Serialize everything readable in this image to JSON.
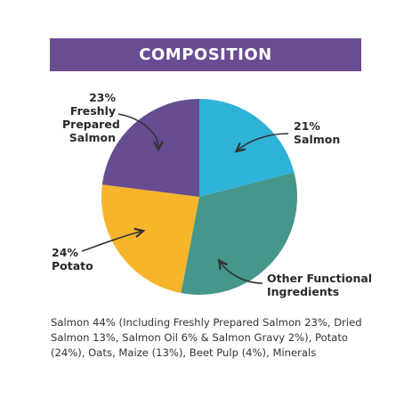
{
  "colors": {
    "banner": "#6a4c93",
    "freshly_prepared_salmon": "#674c91",
    "salmon": "#2fb2d8",
    "other_functional_ingredients": "#44978a",
    "potato": "#f7b52b",
    "arrow": "#333333"
  },
  "banner": {
    "title": "COMPOSITION"
  },
  "chart_data": {
    "type": "pie",
    "title": "COMPOSITION",
    "start_angle_deg": 0,
    "slices": [
      {
        "label_lines": [
          "21%",
          "Salmon"
        ],
        "value": 21,
        "color": "#2fb2d8"
      },
      {
        "label_lines": [
          "Other Functional",
          "Ingredients"
        ],
        "value": 32,
        "color": "#44978a"
      },
      {
        "label_lines": [
          "24%",
          "Potato"
        ],
        "value": 24,
        "color": "#f7b52b"
      },
      {
        "label_lines": [
          "23%",
          "Freshly",
          "Prepared",
          "Salmon"
        ],
        "value": 23,
        "color": "#674c91"
      }
    ]
  },
  "description": "Salmon 44% (Including Freshly Prepared Salmon 23%, Dried Salmon 13%, Salmon Oil 6% & Salmon Gravy 2%), Potato (24%), Oats, Maize (13%), Beet Pulp (4%), Minerals"
}
